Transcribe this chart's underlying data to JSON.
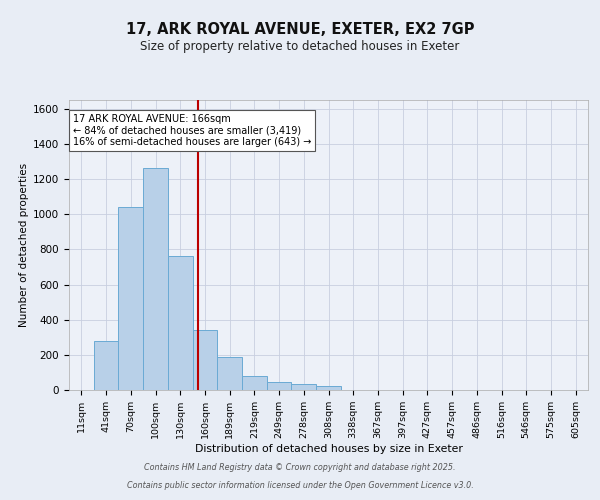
{
  "title": "17, ARK ROYAL AVENUE, EXETER, EX2 7GP",
  "subtitle": "Size of property relative to detached houses in Exeter",
  "xlabel": "Distribution of detached houses by size in Exeter",
  "ylabel": "Number of detached properties",
  "bin_labels": [
    "11sqm",
    "41sqm",
    "70sqm",
    "100sqm",
    "130sqm",
    "160sqm",
    "189sqm",
    "219sqm",
    "249sqm",
    "278sqm",
    "308sqm",
    "338sqm",
    "367sqm",
    "397sqm",
    "427sqm",
    "457sqm",
    "486sqm",
    "516sqm",
    "546sqm",
    "575sqm",
    "605sqm"
  ],
  "bar_values": [
    0,
    280,
    1040,
    1265,
    765,
    340,
    185,
    80,
    48,
    32,
    22,
    0,
    0,
    0,
    0,
    0,
    0,
    0,
    0,
    0,
    0
  ],
  "bar_color": "#b8d0e8",
  "bar_edge_color": "#6aaad4",
  "property_line_color": "#bb0000",
  "annotation_text": "17 ARK ROYAL AVENUE: 166sqm\n← 84% of detached houses are smaller (3,419)\n16% of semi-detached houses are larger (643) →",
  "annotation_box_color": "#ffffff",
  "annotation_box_edge": "#555555",
  "ylim": [
    0,
    1650
  ],
  "yticks": [
    0,
    200,
    400,
    600,
    800,
    1000,
    1200,
    1400,
    1600
  ],
  "background_color": "#e8edf5",
  "plot_bg_color": "#edf1f8",
  "grid_color": "#c8cfe0",
  "footer_line1": "Contains HM Land Registry data © Crown copyright and database right 2025.",
  "footer_line2": "Contains public sector information licensed under the Open Government Licence v3.0."
}
